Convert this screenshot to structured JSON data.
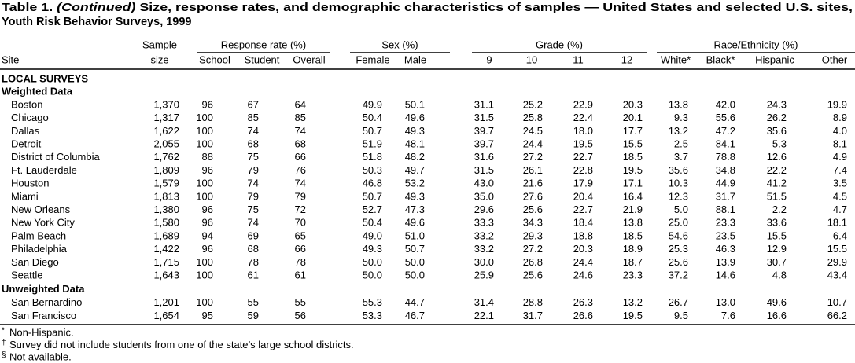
{
  "header": {
    "title_prefix": "Table 1.",
    "title_italic": "(Continued)",
    "title_rest": "Size, response rates, and demographic characteristics of samples — United States and selected U.S. sites,",
    "title_line2": "Youth Risk Behavior Surveys, 1999"
  },
  "table": {
    "column_groups": [
      "Response rate (%)",
      "Sex (%)",
      "Grade (%)",
      "Race/Ethnicity (%)"
    ],
    "sample_label": "Sample",
    "columns": [
      "Site",
      "size",
      "School",
      "Student",
      "Overall",
      "Female",
      "Male",
      "9",
      "10",
      "11",
      "12",
      "White*",
      "Black*",
      "Hispanic",
      "Other"
    ],
    "heading": "LOCAL SURVEYS",
    "sections": [
      {
        "label": "Weighted Data",
        "rows": [
          [
            "Boston",
            "1,370",
            "96",
            "67",
            "64",
            "49.9",
            "50.1",
            "31.1",
            "25.2",
            "22.9",
            "20.3",
            "13.8",
            "42.0",
            "24.3",
            "19.9"
          ],
          [
            "Chicago",
            "1,317",
            "100",
            "85",
            "85",
            "50.4",
            "49.6",
            "31.5",
            "25.8",
            "22.4",
            "20.1",
            "9.3",
            "55.6",
            "26.2",
            "8.9"
          ],
          [
            "Dallas",
            "1,622",
            "100",
            "74",
            "74",
            "50.7",
            "49.3",
            "39.7",
            "24.5",
            "18.0",
            "17.7",
            "13.2",
            "47.2",
            "35.6",
            "4.0"
          ],
          [
            "Detroit",
            "2,055",
            "100",
            "68",
            "68",
            "51.9",
            "48.1",
            "39.7",
            "24.4",
            "19.5",
            "15.5",
            "2.5",
            "84.1",
            "5.3",
            "8.1"
          ],
          [
            "District of Columbia",
            "1,762",
            "88",
            "75",
            "66",
            "51.8",
            "48.2",
            "31.6",
            "27.2",
            "22.7",
            "18.5",
            "3.7",
            "78.8",
            "12.6",
            "4.9"
          ],
          [
            "Ft. Lauderdale",
            "1,809",
            "96",
            "79",
            "76",
            "50.3",
            "49.7",
            "31.5",
            "26.1",
            "22.8",
            "19.5",
            "35.6",
            "34.8",
            "22.2",
            "7.4"
          ],
          [
            "Houston",
            "1,579",
            "100",
            "74",
            "74",
            "46.8",
            "53.2",
            "43.0",
            "21.6",
            "17.9",
            "17.1",
            "10.3",
            "44.9",
            "41.2",
            "3.5"
          ],
          [
            "Miami",
            "1,813",
            "100",
            "79",
            "79",
            "50.7",
            "49.3",
            "35.0",
            "27.6",
            "20.4",
            "16.4",
            "12.3",
            "31.7",
            "51.5",
            "4.5"
          ],
          [
            "New Orleans",
            "1,380",
            "96",
            "75",
            "72",
            "52.7",
            "47.3",
            "29.6",
            "25.6",
            "22.7",
            "21.9",
            "5.0",
            "88.1",
            "2.2",
            "4.7"
          ],
          [
            "New York City",
            "1,580",
            "96",
            "74",
            "70",
            "50.4",
            "49.6",
            "33.3",
            "34.3",
            "18.4",
            "13.8",
            "25.0",
            "23.3",
            "33.6",
            "18.1"
          ],
          [
            "Palm Beach",
            "1,689",
            "94",
            "69",
            "65",
            "49.0",
            "51.0",
            "33.2",
            "29.3",
            "18.8",
            "18.5",
            "54.6",
            "23.5",
            "15.5",
            "6.4"
          ],
          [
            "Philadelphia",
            "1,422",
            "96",
            "68",
            "66",
            "49.3",
            "50.7",
            "33.2",
            "27.2",
            "20.3",
            "18.9",
            "25.3",
            "46.3",
            "12.9",
            "15.5"
          ],
          [
            "San Diego",
            "1,715",
            "100",
            "78",
            "78",
            "50.0",
            "50.0",
            "30.0",
            "26.8",
            "24.4",
            "18.7",
            "25.6",
            "13.9",
            "30.7",
            "29.9"
          ],
          [
            "Seattle",
            "1,643",
            "100",
            "61",
            "61",
            "50.0",
            "50.0",
            "25.9",
            "25.6",
            "24.6",
            "23.3",
            "37.2",
            "14.6",
            "4.8",
            "43.4"
          ]
        ]
      },
      {
        "label": "Unweighted Data",
        "rows": [
          [
            "San Bernardino",
            "1,201",
            "100",
            "55",
            "55",
            "55.3",
            "44.7",
            "31.4",
            "28.8",
            "26.3",
            "13.2",
            "26.7",
            "13.0",
            "49.6",
            "10.7"
          ],
          [
            "San Francisco",
            "1,654",
            "95",
            "59",
            "56",
            "53.3",
            "46.7",
            "22.1",
            "31.7",
            "26.6",
            "19.5",
            "9.5",
            "7.6",
            "16.6",
            "66.2"
          ]
        ]
      }
    ]
  },
  "footnotes": [
    {
      "marker": "*",
      "text": "Non-Hispanic."
    },
    {
      "marker": "†",
      "text": "Survey did not include students from one of the state’s large school districts."
    },
    {
      "marker": "§",
      "text": "Not available."
    }
  ]
}
